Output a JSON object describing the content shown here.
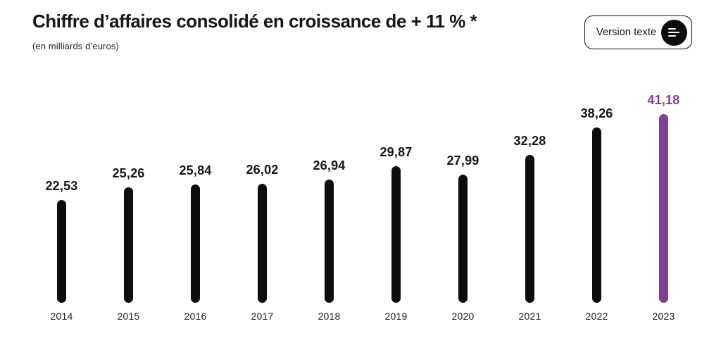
{
  "header": {
    "title": "Chiffre d’affaires consolidé en croissance de + 11 % *",
    "subtitle": "(en milliards d’euros)",
    "version_button": {
      "label": "Version texte",
      "icon": "text-lines-icon"
    }
  },
  "chart_data": {
    "type": "bar",
    "title": "Chiffre d’affaires consolidé en croissance de + 11 % *",
    "ylabel": "(en milliards d’euros)",
    "xlabel": "",
    "categories": [
      "2014",
      "2015",
      "2016",
      "2017",
      "2018",
      "2019",
      "2020",
      "2021",
      "2022",
      "2023"
    ],
    "values": [
      22.53,
      25.26,
      25.84,
      26.02,
      26.94,
      29.87,
      27.99,
      32.28,
      38.26,
      41.18
    ],
    "value_labels": [
      "22,53",
      "25,26",
      "25,84",
      "26,02",
      "26,94",
      "29,87",
      "27,99",
      "32,28",
      "38,26",
      "41,18"
    ],
    "ylim": [
      0,
      45
    ],
    "grid": false,
    "legend": false,
    "bar_color": "#0d0d0d",
    "highlight_index": 9,
    "highlight_color": "#7E4191",
    "text_color": "#151515"
  }
}
